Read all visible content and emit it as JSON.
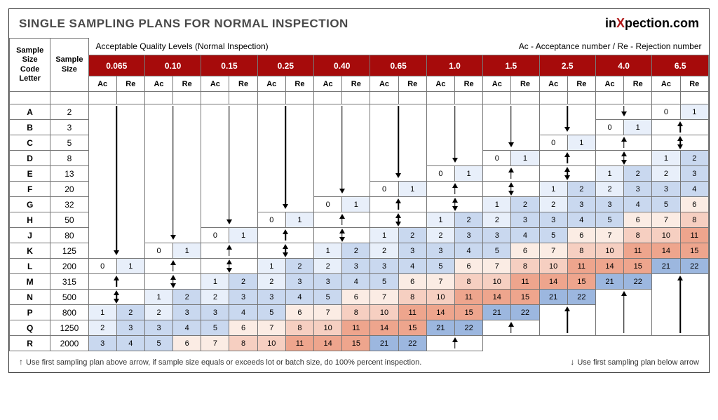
{
  "title": "SINGLE SAMPLING PLANS FOR NORMAL INSPECTION",
  "brand": {
    "pre": "in",
    "x": "X",
    "post": "pection.com"
  },
  "header_labels": {
    "code_letter": "Sample\nSize\nCode\nLetter",
    "sample_size": "Sample\nSize",
    "aql_left": "Acceptable Quality Levels (Normal Inspection)",
    "aql_right": "Ac - Acceptance number / Re - Rejection number",
    "ac": "Ac",
    "re": "Re"
  },
  "aql_levels": [
    "0.065",
    "0.10",
    "0.15",
    "0.25",
    "0.40",
    "0.65",
    "1.0",
    "1.5",
    "2.5",
    "4.0",
    "6.5"
  ],
  "code_letters": [
    "A",
    "B",
    "C",
    "D",
    "E",
    "F",
    "G",
    "H",
    "J",
    "K",
    "L",
    "M",
    "N",
    "P",
    "Q",
    "R"
  ],
  "sample_sizes": [
    "2",
    "3",
    "5",
    "8",
    "13",
    "20",
    "32",
    "50",
    "80",
    "125",
    "200",
    "315",
    "500",
    "800",
    "1250",
    "2000"
  ],
  "colors": {
    "header_red": "#a60b0b",
    "b1": "#e8effa",
    "b2": "#c9d8ef",
    "b3": "#9cb7df",
    "p1": "#fbece4",
    "p2": "#f6cfc1",
    "p3": "#eea58d",
    "text_title": "#4a4a4a",
    "brand_x": "#b01818"
  },
  "cells": {
    "A": [
      [
        "d",
        10
      ],
      [
        "d",
        9
      ],
      [
        "d",
        8
      ],
      [
        "d",
        7
      ],
      [
        "d",
        6
      ],
      [
        "d",
        5
      ],
      [
        "d",
        4
      ],
      [
        "d",
        3
      ],
      [
        "d",
        2
      ],
      [
        "d",
        1
      ],
      [
        "v",
        "0",
        "1",
        "",
        "b1"
      ]
    ],
    "B": [
      [
        "c"
      ],
      [
        "c"
      ],
      [
        "c"
      ],
      [
        "c"
      ],
      [
        "c"
      ],
      [
        "c"
      ],
      [
        "c"
      ],
      [
        "c"
      ],
      [
        "c"
      ],
      [
        "v",
        "0",
        "1",
        "",
        "b1"
      ],
      [
        "u",
        1
      ]
    ],
    "C": [
      [
        "c"
      ],
      [
        "c"
      ],
      [
        "c"
      ],
      [
        "c"
      ],
      [
        "c"
      ],
      [
        "c"
      ],
      [
        "c"
      ],
      [
        "c"
      ],
      [
        "v",
        "0",
        "1",
        "",
        "b1"
      ],
      [
        "u",
        1
      ],
      [
        "ud",
        1
      ]
    ],
    "D": [
      [
        "c"
      ],
      [
        "c"
      ],
      [
        "c"
      ],
      [
        "c"
      ],
      [
        "c"
      ],
      [
        "c"
      ],
      [
        "c"
      ],
      [
        "v",
        "0",
        "1",
        "",
        "b1"
      ],
      [
        "u",
        1
      ],
      [
        "ud",
        1
      ],
      [
        "v",
        "1",
        "2",
        "b1",
        "b2"
      ]
    ],
    "E": [
      [
        "c"
      ],
      [
        "c"
      ],
      [
        "c"
      ],
      [
        "c"
      ],
      [
        "c"
      ],
      [
        "c"
      ],
      [
        "v",
        "0",
        "1",
        "",
        "b1"
      ],
      [
        "u",
        1
      ],
      [
        "ud",
        1
      ],
      [
        "v",
        "1",
        "2",
        "b1",
        "b2"
      ],
      [
        "v",
        "2",
        "3",
        "b1",
        "b2"
      ]
    ],
    "F": [
      [
        "c"
      ],
      [
        "c"
      ],
      [
        "c"
      ],
      [
        "c"
      ],
      [
        "c"
      ],
      [
        "v",
        "0",
        "1",
        "",
        "b1"
      ],
      [
        "u",
        1
      ],
      [
        "ud",
        1
      ],
      [
        "v",
        "1",
        "2",
        "b1",
        "b2"
      ],
      [
        "v",
        "2",
        "3",
        "b1",
        "b2"
      ],
      [
        "v",
        "3",
        "4",
        "b2",
        "b2"
      ]
    ],
    "G": [
      [
        "c"
      ],
      [
        "c"
      ],
      [
        "c"
      ],
      [
        "c"
      ],
      [
        "v",
        "0",
        "1",
        "",
        "b1"
      ],
      [
        "u",
        1
      ],
      [
        "ud",
        1
      ],
      [
        "v",
        "1",
        "2",
        "b1",
        "b2"
      ],
      [
        "v",
        "2",
        "3",
        "b1",
        "b2"
      ],
      [
        "v",
        "3",
        "4",
        "b2",
        "b2"
      ],
      [
        "v",
        "5",
        "6",
        "b2",
        "p1"
      ]
    ],
    "H": [
      [
        "c"
      ],
      [
        "c"
      ],
      [
        "c"
      ],
      [
        "v",
        "0",
        "1",
        "",
        "b1"
      ],
      [
        "u",
        1
      ],
      [
        "ud",
        1
      ],
      [
        "v",
        "1",
        "2",
        "b1",
        "b2"
      ],
      [
        "v",
        "2",
        "3",
        "b1",
        "b2"
      ],
      [
        "v",
        "3",
        "4",
        "b2",
        "b2"
      ],
      [
        "v",
        "5",
        "6",
        "b2",
        "p1"
      ],
      [
        "v",
        "7",
        "8",
        "p1",
        "p2"
      ]
    ],
    "J": [
      [
        "c"
      ],
      [
        "c"
      ],
      [
        "v",
        "0",
        "1",
        "",
        "b1"
      ],
      [
        "u",
        1
      ],
      [
        "ud",
        1
      ],
      [
        "v",
        "1",
        "2",
        "b1",
        "b2"
      ],
      [
        "v",
        "2",
        "3",
        "b1",
        "b2"
      ],
      [
        "v",
        "3",
        "4",
        "b2",
        "b2"
      ],
      [
        "v",
        "5",
        "6",
        "b2",
        "p1"
      ],
      [
        "v",
        "7",
        "8",
        "p1",
        "p2"
      ],
      [
        "v",
        "10",
        "11",
        "p2",
        "p3"
      ]
    ],
    "K": [
      [
        "c"
      ],
      [
        "v",
        "0",
        "1",
        "",
        "b1"
      ],
      [
        "u",
        1
      ],
      [
        "ud",
        1
      ],
      [
        "v",
        "1",
        "2",
        "b1",
        "b2"
      ],
      [
        "v",
        "2",
        "3",
        "b1",
        "b2"
      ],
      [
        "v",
        "3",
        "4",
        "b2",
        "b2"
      ],
      [
        "v",
        "5",
        "6",
        "b2",
        "p1"
      ],
      [
        "v",
        "7",
        "8",
        "p1",
        "p2"
      ],
      [
        "v",
        "10",
        "11",
        "p2",
        "p3"
      ],
      [
        "v",
        "14",
        "15",
        "p3",
        "p3"
      ]
    ],
    "L": [
      [
        "v",
        "0",
        "1",
        "",
        "b1"
      ],
      [
        "u",
        1
      ],
      [
        "ud",
        1
      ],
      [
        "v",
        "1",
        "2",
        "b1",
        "b2"
      ],
      [
        "v",
        "2",
        "3",
        "b1",
        "b2"
      ],
      [
        "v",
        "3",
        "4",
        "b2",
        "b2"
      ],
      [
        "v",
        "5",
        "6",
        "b2",
        "p1"
      ],
      [
        "v",
        "7",
        "8",
        "p1",
        "p2"
      ],
      [
        "v",
        "10",
        "11",
        "p2",
        "p3"
      ],
      [
        "v",
        "14",
        "15",
        "p3",
        "p3"
      ],
      [
        "v",
        "21",
        "22",
        "b3",
        "b3"
      ]
    ],
    "M": [
      [
        "u",
        1
      ],
      [
        "ud",
        1
      ],
      [
        "v",
        "1",
        "2",
        "b1",
        "b2"
      ],
      [
        "v",
        "2",
        "3",
        "b1",
        "b2"
      ],
      [
        "v",
        "3",
        "4",
        "b2",
        "b2"
      ],
      [
        "v",
        "5",
        "6",
        "b2",
        "p1"
      ],
      [
        "v",
        "7",
        "8",
        "p1",
        "p2"
      ],
      [
        "v",
        "10",
        "11",
        "p2",
        "p3"
      ],
      [
        "v",
        "14",
        "15",
        "p3",
        "p3"
      ],
      [
        "v",
        "21",
        "22",
        "b3",
        "b3"
      ],
      [
        "u",
        4
      ]
    ],
    "N": [
      [
        "ud",
        1
      ],
      [
        "v",
        "1",
        "2",
        "b1",
        "b2"
      ],
      [
        "v",
        "2",
        "3",
        "b1",
        "b2"
      ],
      [
        "v",
        "3",
        "4",
        "b2",
        "b2"
      ],
      [
        "v",
        "5",
        "6",
        "b2",
        "p1"
      ],
      [
        "v",
        "7",
        "8",
        "p1",
        "p2"
      ],
      [
        "v",
        "10",
        "11",
        "p2",
        "p3"
      ],
      [
        "v",
        "14",
        "15",
        "p3",
        "p3"
      ],
      [
        "v",
        "21",
        "22",
        "b3",
        "b3"
      ],
      [
        "u",
        3
      ],
      [
        "c"
      ]
    ],
    "P": [
      [
        "v",
        "1",
        "2",
        "b1",
        "b2"
      ],
      [
        "v",
        "2",
        "3",
        "b1",
        "b2"
      ],
      [
        "v",
        "3",
        "4",
        "b2",
        "b2"
      ],
      [
        "v",
        "5",
        "6",
        "b2",
        "p1"
      ],
      [
        "v",
        "7",
        "8",
        "p1",
        "p2"
      ],
      [
        "v",
        "10",
        "11",
        "p2",
        "p3"
      ],
      [
        "v",
        "14",
        "15",
        "p3",
        "p3"
      ],
      [
        "v",
        "21",
        "22",
        "b3",
        "b3"
      ],
      [
        "u",
        2
      ],
      [
        "c"
      ],
      [
        "c"
      ]
    ],
    "Q": [
      [
        "v",
        "2",
        "3",
        "b1",
        "b2"
      ],
      [
        "v",
        "3",
        "4",
        "b2",
        "b2"
      ],
      [
        "v",
        "5",
        "6",
        "b2",
        "p1"
      ],
      [
        "v",
        "7",
        "8",
        "p1",
        "p2"
      ],
      [
        "v",
        "10",
        "11",
        "p2",
        "p3"
      ],
      [
        "v",
        "14",
        "15",
        "p3",
        "p3"
      ],
      [
        "v",
        "21",
        "22",
        "b3",
        "b3"
      ],
      [
        "u",
        1
      ],
      [
        "c"
      ],
      [
        "c"
      ],
      [
        "c"
      ]
    ],
    "R": [
      [
        "v",
        "3",
        "4",
        "b2",
        "b2"
      ],
      [
        "v",
        "5",
        "6",
        "b2",
        "p1"
      ],
      [
        "v",
        "7",
        "8",
        "p1",
        "p2"
      ],
      [
        "v",
        "10",
        "11",
        "p2",
        "p3"
      ],
      [
        "v",
        "14",
        "15",
        "p3",
        "p3"
      ],
      [
        "v",
        "21",
        "22",
        "b3",
        "b3"
      ],
      [
        "u",
        0
      ],
      [
        "c"
      ],
      [
        "c"
      ],
      [
        "c"
      ],
      [
        "c"
      ]
    ]
  },
  "footer": {
    "left": "Use first sampling plan above arrow, if sample size equals or exceeds lot or batch size, do 100% percent inspection.",
    "right": "Use first sampling plan below arrow"
  }
}
